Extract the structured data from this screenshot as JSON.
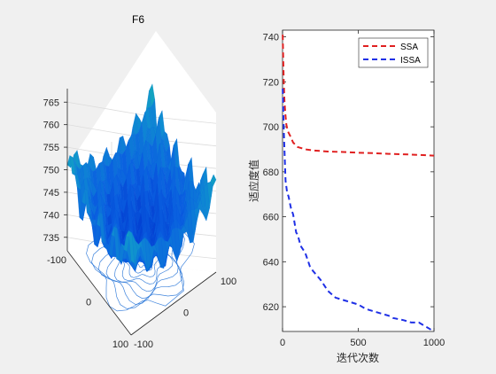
{
  "chart_data": [
    {
      "type": "surface3d",
      "title": "F6",
      "z_ticks": [
        "735",
        "740",
        "745",
        "750",
        "755",
        "760",
        "765"
      ],
      "x_ticks": [
        "-100",
        "0",
        "100"
      ],
      "y_ticks": [
        "-100",
        "0",
        "100"
      ],
      "zlim": [
        732,
        768
      ],
      "xlim": [
        -100,
        100
      ],
      "ylim": [
        -100,
        100
      ],
      "colormap": [
        "#0033cc",
        "#0a5fe0",
        "#0f8fd0",
        "#18c1a8",
        "#22e08a"
      ],
      "contour_color": "#1d6fd6"
    },
    {
      "type": "line",
      "title": "",
      "xlabel": "迭代次数",
      "ylabel": "适应度值",
      "xlim": [
        0,
        1000
      ],
      "ylim": [
        609,
        743
      ],
      "x_ticks": [
        "0",
        "500",
        "1000"
      ],
      "y_ticks": [
        "620",
        "640",
        "660",
        "680",
        "700",
        "720",
        "740"
      ],
      "legend_position": "top-right",
      "series": [
        {
          "name": "SSA",
          "color": "#e02020",
          "x": [
            1,
            3,
            5,
            8,
            12,
            18,
            25,
            35,
            50,
            70,
            100,
            150,
            200,
            300,
            400,
            500,
            600,
            700,
            800,
            900,
            1000
          ],
          "y": [
            741,
            735,
            728,
            720,
            712,
            706,
            701,
            698,
            696,
            693,
            691,
            690,
            689.5,
            689,
            688.8,
            688.5,
            688.3,
            688,
            687.8,
            687.5,
            687.2
          ]
        },
        {
          "name": "ISSA",
          "color": "#1f30e6",
          "x": [
            1,
            5,
            10,
            15,
            20,
            30,
            40,
            55,
            70,
            90,
            100,
            120,
            150,
            180,
            200,
            250,
            300,
            350,
            400,
            450,
            500,
            550,
            600,
            650,
            700,
            730,
            800,
            850,
            900,
            950,
            1000
          ],
          "y": [
            717,
            706,
            695,
            685,
            676,
            671,
            669,
            664,
            661,
            653,
            652,
            647,
            644,
            638,
            636,
            632,
            627,
            624,
            623,
            622,
            621,
            619,
            618,
            617,
            616,
            615,
            614,
            613,
            613,
            611,
            609
          ]
        }
      ]
    }
  ]
}
